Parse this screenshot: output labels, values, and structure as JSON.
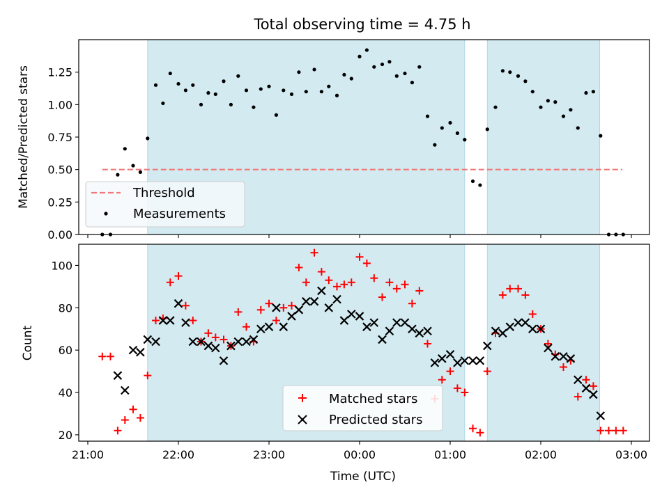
{
  "chart_data": {
    "title": "Total observing time = 4.75 h",
    "xlabel": "Time (UTC)",
    "x_tick_labels": [
      "21:00",
      "22:00",
      "23:00",
      "00:00",
      "01:00",
      "02:00",
      "03:00"
    ],
    "x_ticks_hours": [
      0,
      1,
      2,
      3,
      4,
      5,
      6
    ],
    "x_axis_origin": "21:00",
    "xlim_hours": [
      -0.1,
      6.2
    ],
    "observing_windows_hours": [
      [
        0.66,
        4.16
      ],
      [
        4.41,
        5.65
      ]
    ],
    "window_color": "#d3eaf1",
    "panels": [
      {
        "type": "scatter",
        "ylabel": "Matched/Predicted stars",
        "ylim": [
          0,
          1.5
        ],
        "y_ticks": [
          0,
          0.25,
          0.5,
          0.75,
          1.0,
          1.25
        ],
        "y_tick_labels": [
          "0.00",
          "0.25",
          "0.50",
          "0.75",
          "1.00",
          "1.25"
        ],
        "threshold": {
          "name": "Threshold",
          "value": 0.5,
          "x_range_hours": [
            0.16,
            5.9
          ],
          "color": "#f07878"
        },
        "series": [
          {
            "name": "Measurements",
            "color": "#000000",
            "x": [
              0.16,
              0.25,
              0.33,
              0.41,
              0.5,
              0.58,
              0.66,
              0.75,
              0.83,
              0.91,
              1.0,
              1.08,
              1.16,
              1.25,
              1.33,
              1.41,
              1.5,
              1.58,
              1.66,
              1.75,
              1.83,
              1.91,
              2.0,
              2.08,
              2.16,
              2.25,
              2.33,
              2.41,
              2.5,
              2.58,
              2.66,
              2.75,
              2.83,
              2.91,
              3.0,
              3.08,
              3.16,
              3.25,
              3.33,
              3.41,
              3.5,
              3.58,
              3.66,
              3.75,
              3.83,
              3.91,
              4.0,
              4.08,
              4.16,
              4.25,
              4.33,
              4.41,
              4.5,
              4.58,
              4.66,
              4.75,
              4.83,
              4.91,
              5.0,
              5.08,
              5.16,
              5.25,
              5.33,
              5.41,
              5.5,
              5.58,
              5.66,
              5.75,
              5.83,
              5.91
            ],
            "values": [
              0.0,
              0.0,
              0.46,
              0.66,
              0.53,
              0.48,
              0.74,
              1.15,
              1.01,
              1.24,
              1.16,
              1.11,
              1.15,
              1.0,
              1.09,
              1.08,
              1.18,
              1.0,
              1.22,
              1.11,
              0.98,
              1.12,
              1.14,
              0.92,
              1.11,
              1.08,
              1.25,
              1.1,
              1.27,
              1.1,
              1.14,
              1.07,
              1.23,
              1.2,
              1.37,
              1.42,
              1.29,
              1.31,
              1.33,
              1.22,
              1.24,
              1.17,
              1.29,
              0.91,
              0.69,
              0.82,
              0.86,
              0.78,
              0.73,
              0.41,
              0.38,
              0.81,
              0.98,
              1.26,
              1.25,
              1.22,
              1.18,
              1.1,
              0.98,
              1.03,
              1.02,
              0.91,
              0.96,
              0.82,
              1.09,
              1.1,
              0.76,
              0.0,
              0.0,
              0.0
            ]
          }
        ],
        "legend": [
          "Threshold",
          "Measurements"
        ]
      },
      {
        "type": "scatter",
        "ylabel": "Count",
        "ylim": [
          17,
          110
        ],
        "y_ticks": [
          20,
          40,
          60,
          80,
          100
        ],
        "y_tick_labels": [
          "20",
          "40",
          "60",
          "80",
          "100"
        ],
        "series": [
          {
            "name": "Matched stars",
            "marker": "+",
            "color": "#ff0000",
            "x": [
              0.16,
              0.25,
              0.33,
              0.41,
              0.5,
              0.58,
              0.66,
              0.75,
              0.83,
              0.91,
              1.0,
              1.08,
              1.16,
              1.25,
              1.33,
              1.41,
              1.5,
              1.58,
              1.66,
              1.75,
              1.83,
              1.91,
              2.0,
              2.08,
              2.16,
              2.25,
              2.33,
              2.41,
              2.5,
              2.58,
              2.66,
              2.75,
              2.83,
              2.91,
              3.0,
              3.08,
              3.16,
              3.25,
              3.33,
              3.41,
              3.5,
              3.58,
              3.66,
              3.75,
              3.83,
              3.91,
              4.0,
              4.08,
              4.16,
              4.25,
              4.33,
              4.41,
              4.5,
              4.58,
              4.66,
              4.75,
              4.83,
              4.91,
              5.0,
              5.08,
              5.16,
              5.25,
              5.33,
              5.41,
              5.5,
              5.58,
              5.66,
              5.75,
              5.83,
              5.91
            ],
            "values": [
              57,
              57,
              22,
              27,
              32,
              28,
              48,
              74,
              75,
              92,
              95,
              81,
              74,
              64,
              68,
              66,
              65,
              62,
              78,
              71,
              64,
              79,
              82,
              74,
              80,
              81,
              99,
              92,
              106,
              97,
              93,
              90,
              91,
              92,
              104,
              101,
              94,
              85,
              92,
              89,
              91,
              82,
              88,
              63,
              37,
              46,
              50,
              42,
              40,
              23,
              21,
              50,
              68,
              86,
              89,
              89,
              86,
              77,
              70,
              63,
              58,
              52,
              55,
              38,
              46,
              43,
              22,
              22,
              22,
              22
            ]
          },
          {
            "name": "Predicted stars",
            "marker": "x",
            "color": "#000000",
            "x": [
              0.33,
              0.41,
              0.5,
              0.58,
              0.66,
              0.75,
              0.83,
              0.91,
              1.0,
              1.08,
              1.16,
              1.25,
              1.33,
              1.41,
              1.5,
              1.58,
              1.66,
              1.75,
              1.83,
              1.91,
              2.0,
              2.08,
              2.16,
              2.25,
              2.33,
              2.41,
              2.5,
              2.58,
              2.66,
              2.75,
              2.83,
              2.91,
              3.0,
              3.08,
              3.16,
              3.25,
              3.33,
              3.41,
              3.5,
              3.58,
              3.66,
              3.75,
              3.83,
              3.91,
              4.0,
              4.08,
              4.16,
              4.25,
              4.33,
              4.41,
              4.5,
              4.58,
              4.66,
              4.75,
              4.83,
              4.91,
              5.0,
              5.08,
              5.16,
              5.25,
              5.33,
              5.41,
              5.5,
              5.58,
              5.66
            ],
            "values": [
              48,
              41,
              60,
              59,
              65,
              64,
              74,
              74,
              82,
              73,
              64,
              64,
              62,
              61,
              55,
              62,
              64,
              64,
              65,
              70,
              71,
              80,
              71,
              76,
              79,
              83,
              83,
              88,
              80,
              84,
              74,
              77,
              76,
              71,
              73,
              65,
              69,
              73,
              73,
              70,
              68,
              69,
              54,
              56,
              58,
              54,
              55,
              55,
              55,
              62,
              69,
              68,
              71,
              73,
              73,
              70,
              70,
              61,
              57,
              57,
              56,
              46,
              42,
              39,
              29
            ]
          }
        ],
        "legend": [
          "Matched stars",
          "Predicted stars"
        ]
      }
    ]
  }
}
